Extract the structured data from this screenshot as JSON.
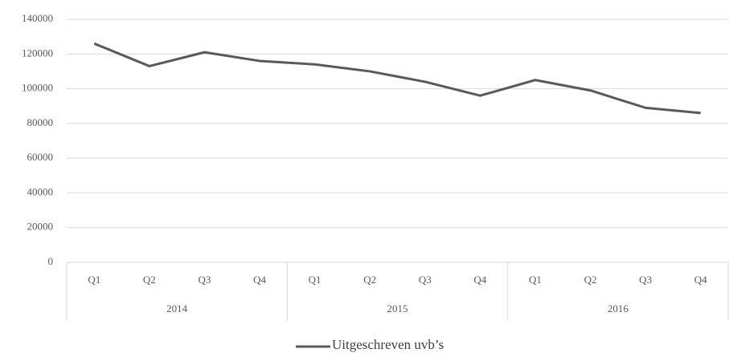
{
  "chart_data": {
    "type": "line",
    "categories": [
      "Q1",
      "Q2",
      "Q3",
      "Q4",
      "Q1",
      "Q2",
      "Q3",
      "Q4",
      "Q1",
      "Q2",
      "Q3",
      "Q4"
    ],
    "groups": [
      "2014",
      "2015",
      "2016"
    ],
    "series": [
      {
        "name": "Uitgeschreven uvb’s",
        "color": "#595959",
        "values": [
          126000,
          113000,
          121000,
          116000,
          114000,
          110000,
          104000,
          96000,
          105000,
          99000,
          89000,
          86000
        ]
      }
    ],
    "ylim": [
      0,
      140000
    ],
    "yticks": [
      0,
      20000,
      40000,
      60000,
      80000,
      100000,
      120000,
      140000
    ],
    "grid": true,
    "legend": "bottom"
  }
}
